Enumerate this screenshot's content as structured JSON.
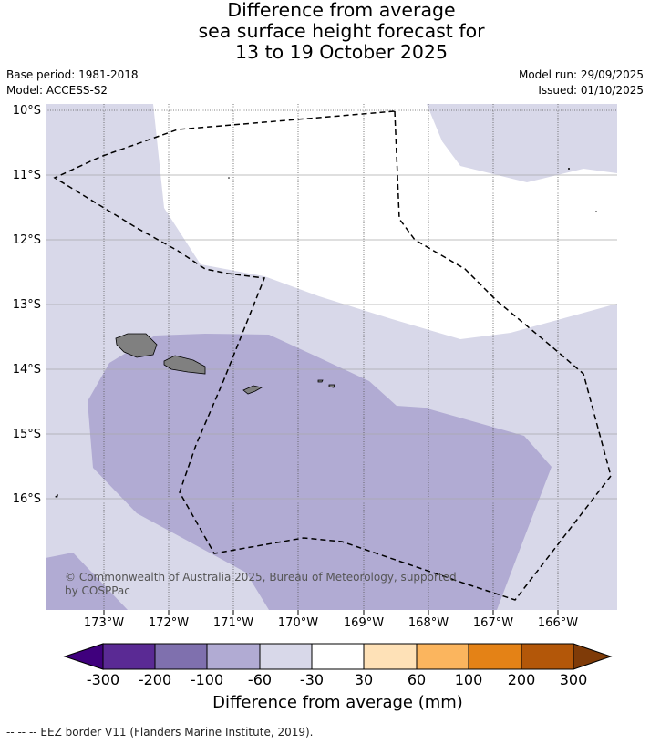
{
  "title": {
    "line1": "Difference from average",
    "line2": "sea surface height forecast for",
    "line3": "13 to 19 October 2025"
  },
  "meta": {
    "base_period": "Base period: 1981-2018",
    "model": "Model: ACCESS-S2",
    "model_run": "Model run: 29/09/2025",
    "issued": "Issued: 01/10/2025"
  },
  "map": {
    "lat_labels": [
      "10°S",
      "11°S",
      "12°S",
      "13°S",
      "14°S",
      "15°S",
      "16°S"
    ],
    "lon_labels": [
      "173°W",
      "172°W",
      "171°W",
      "170°W",
      "169°W",
      "168°W",
      "167°W",
      "166°W"
    ],
    "copyright": "© Commonwealth of Australia 2025, Bureau of Meteorology, supported by COSPPac",
    "colors": {
      "light_lavender": "#d8d8e9",
      "medium_lavender": "#b1abd3",
      "land": "#808080"
    }
  },
  "colorbar": {
    "title": "Difference from average (mm)",
    "ticks": [
      "-300",
      "-200",
      "-100",
      "-60",
      "-30",
      "30",
      "60",
      "100",
      "200",
      "300"
    ],
    "colors": [
      "#3f007d",
      "#5a2a94",
      "#7f70ae",
      "#b1abd3",
      "#d8d8e9",
      "#ffffff",
      "#fee1b7",
      "#fbb55e",
      "#e48216",
      "#b35709",
      "#7f3b08"
    ]
  },
  "footer": {
    "eez_legend": "--  --  -- EEZ border V11 (Flanders Marine Institute, 2019)."
  }
}
